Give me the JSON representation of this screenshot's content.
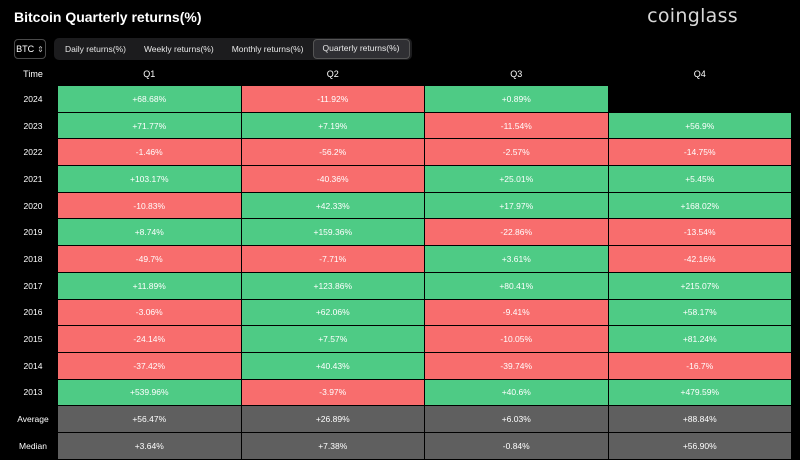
{
  "title": "Bitcoin Quarterly returns(%)",
  "logo": "coinglass",
  "coin_select": {
    "value": "BTC"
  },
  "tabs": [
    {
      "label": "Daily returns(%)",
      "active": false
    },
    {
      "label": "Weekly returns(%)",
      "active": false
    },
    {
      "label": "Monthly returns(%)",
      "active": false
    },
    {
      "label": "Quarterly returns(%)",
      "active": true
    }
  ],
  "colors": {
    "positive": "#4ecb85",
    "negative": "#f86d6d",
    "stat": "#5f5f5f",
    "background": "#000000"
  },
  "table": {
    "headers": [
      "Time",
      "Q1",
      "Q2",
      "Q3",
      "Q4"
    ],
    "rows": [
      {
        "year": "2024",
        "q1": "+68.68%",
        "q2": "-11.92%",
        "q3": "+0.89%",
        "q4": ""
      },
      {
        "year": "2023",
        "q1": "+71.77%",
        "q2": "+7.19%",
        "q3": "-11.54%",
        "q4": "+56.9%"
      },
      {
        "year": "2022",
        "q1": "-1.46%",
        "q2": "-56.2%",
        "q3": "-2.57%",
        "q4": "-14.75%"
      },
      {
        "year": "2021",
        "q1": "+103.17%",
        "q2": "-40.36%",
        "q3": "+25.01%",
        "q4": "+5.45%"
      },
      {
        "year": "2020",
        "q1": "-10.83%",
        "q2": "+42.33%",
        "q3": "+17.97%",
        "q4": "+168.02%"
      },
      {
        "year": "2019",
        "q1": "+8.74%",
        "q2": "+159.36%",
        "q3": "-22.86%",
        "q4": "-13.54%"
      },
      {
        "year": "2018",
        "q1": "-49.7%",
        "q2": "-7.71%",
        "q3": "+3.61%",
        "q4": "-42.16%"
      },
      {
        "year": "2017",
        "q1": "+11.89%",
        "q2": "+123.86%",
        "q3": "+80.41%",
        "q4": "+215.07%"
      },
      {
        "year": "2016",
        "q1": "-3.06%",
        "q2": "+62.06%",
        "q3": "-9.41%",
        "q4": "+58.17%"
      },
      {
        "year": "2015",
        "q1": "-24.14%",
        "q2": "+7.57%",
        "q3": "-10.05%",
        "q4": "+81.24%"
      },
      {
        "year": "2014",
        "q1": "-37.42%",
        "q2": "+40.43%",
        "q3": "-39.74%",
        "q4": "-16.7%"
      },
      {
        "year": "2013",
        "q1": "+539.96%",
        "q2": "-3.97%",
        "q3": "+40.6%",
        "q4": "+479.59%"
      }
    ],
    "average": {
      "label": "Average",
      "q1": "+56.47%",
      "q2": "+26.89%",
      "q3": "+6.03%",
      "q4": "+88.84%"
    },
    "median": {
      "label": "Median",
      "q1": "+3.64%",
      "q2": "+7.38%",
      "q3": "-0.84%",
      "q4": "+56.90%"
    }
  }
}
